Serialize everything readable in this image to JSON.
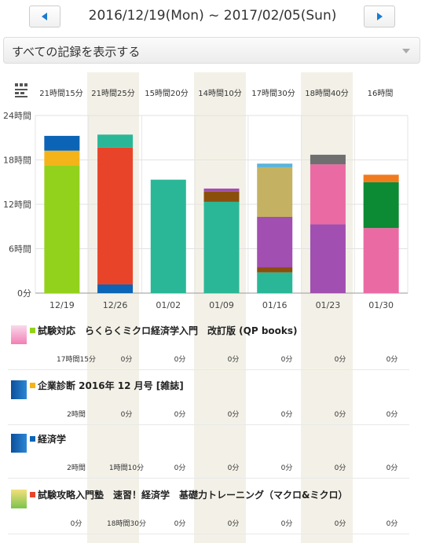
{
  "header": {
    "range": "2016/12/19(Mon) ~ 2017/02/05(Sun)",
    "prev_icon": "chevron-left-icon",
    "next_icon": "chevron-right-icon"
  },
  "filter": {
    "label": "すべての記録を表示する"
  },
  "totals": {
    "icon": "total-time-icon",
    "weeks": [
      "21時間15分",
      "21時間25分",
      "15時間20分",
      "14時間10分",
      "17時間30分",
      "18時間40分",
      "16時間"
    ]
  },
  "chart_data": {
    "type": "bar",
    "stacked": true,
    "categories": [
      "12/19",
      "12/26",
      "01/02",
      "01/09",
      "01/16",
      "01/23",
      "01/30"
    ],
    "y_ticks": [
      "0分",
      "6時間",
      "12時間",
      "18時間",
      "24時間"
    ],
    "ylim": [
      0,
      24
    ],
    "series": [
      {
        "name": "試験対応 らくらくミクロ経済学入門 改訂版 (QP books)",
        "color": "#93d21c",
        "values": [
          17.25,
          0,
          0,
          0,
          0,
          0,
          0
        ]
      },
      {
        "name": "企業診断 2016年 12 月号 [雑誌]",
        "color": "#f5b31a",
        "values": [
          2,
          0,
          0,
          0,
          0,
          0,
          0
        ]
      },
      {
        "name": "経済学",
        "color": "#0b64b5",
        "values": [
          2,
          1.17,
          0,
          0,
          0,
          0,
          0
        ]
      },
      {
        "name": "試験攻略入門塾 速習！経済学 基礎力トレーニング (マクロ&ミクロ)",
        "color": "#e8442a",
        "values": [
          0,
          18.5,
          0,
          0,
          0,
          0,
          0
        ]
      },
      {
        "name": "",
        "color": "#2ab797",
        "values": [
          0,
          1.75,
          15.33,
          12.33,
          2.8,
          0,
          0
        ]
      },
      {
        "name": "",
        "color": "#8b4f0c",
        "values": [
          0,
          0,
          0,
          1.4,
          0.7,
          0,
          0
        ]
      },
      {
        "name": "",
        "color": "#a14fb0",
        "values": [
          0,
          0,
          0,
          0.4,
          6.8,
          9.3,
          0
        ]
      },
      {
        "name": "",
        "color": "#c4b262",
        "values": [
          0,
          0,
          0,
          0,
          6.7,
          0,
          0
        ]
      },
      {
        "name": "",
        "color": "#5ab4d8",
        "values": [
          0,
          0,
          0,
          0,
          0.5,
          0,
          0
        ]
      },
      {
        "name": "",
        "color": "#ea6aa4",
        "values": [
          0,
          0,
          0,
          0,
          0,
          8.1,
          8.8
        ]
      },
      {
        "name": "",
        "color": "#6f6f6f",
        "values": [
          0,
          0,
          0,
          0,
          0,
          1.3,
          0
        ]
      },
      {
        "name": "",
        "color": "#0c8a34",
        "values": [
          0,
          0,
          0,
          0,
          0,
          0,
          6.2
        ]
      },
      {
        "name": "",
        "color": "#f07a1e",
        "values": [
          0,
          0,
          0,
          0,
          0,
          0,
          1.0
        ]
      }
    ]
  },
  "books": [
    {
      "title": "試験対応　らくらくミクロ経済学入門　改訂版 (QP books)",
      "color": "#93d21c",
      "thumb": "book-cover-pink",
      "cells": [
        "17時間15分",
        "0分",
        "0分",
        "0分",
        "0分",
        "0分",
        "0分"
      ]
    },
    {
      "title": "企業診断 2016年 12 月号 [雑誌]",
      "color": "#f5b31a",
      "thumb": "book-cover-blue",
      "cells": [
        "2時間",
        "0分",
        "0分",
        "0分",
        "0分",
        "0分",
        "0分"
      ]
    },
    {
      "title": "経済学",
      "color": "#0b64b5",
      "thumb": "book-cover-blue",
      "cells": [
        "2時間",
        "1時間10分",
        "0分",
        "0分",
        "0分",
        "0分",
        "0分"
      ]
    },
    {
      "title": "試験攻略入門塾　速習！経済学　基礎力トレーニング（マクロ&ミクロ）",
      "color": "#e8442a",
      "thumb": "book-cover-yellow",
      "cells": [
        "0分",
        "18時間30分",
        "0分",
        "0分",
        "0分",
        "0分",
        "0分"
      ]
    }
  ]
}
